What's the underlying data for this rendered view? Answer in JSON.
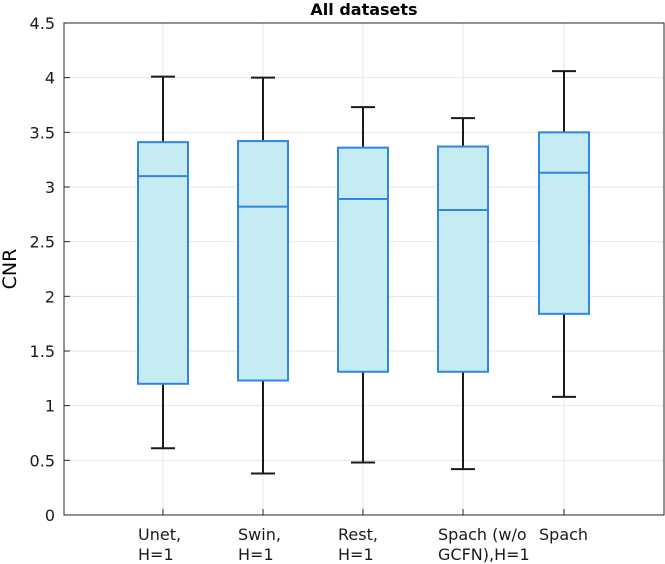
{
  "chart_data": {
    "type": "boxplot",
    "title": "All datasets",
    "xlabel": "",
    "ylabel": "CNR",
    "ylim": [
      0,
      4.5
    ],
    "yticks": [
      "0",
      "0.5",
      "1",
      "1.5",
      "2",
      "2.5",
      "3",
      "3.5",
      "4",
      "4.5"
    ],
    "grid": true,
    "categories": [
      {
        "lines": [
          "Unet,",
          "H=1"
        ]
      },
      {
        "lines": [
          "Swin,",
          "H=1"
        ]
      },
      {
        "lines": [
          "Rest,",
          "H=1"
        ]
      },
      {
        "lines": [
          "Spach  (w/o",
          "GCFN),H=1"
        ]
      },
      {
        "lines": [
          "Spach"
        ]
      }
    ],
    "boxes": [
      {
        "whisker_low": 0.61,
        "q1": 1.2,
        "median": 3.1,
        "q3": 3.41,
        "whisker_high": 4.01
      },
      {
        "whisker_low": 0.38,
        "q1": 1.23,
        "median": 2.82,
        "q3": 3.42,
        "whisker_high": 4.0
      },
      {
        "whisker_low": 0.48,
        "q1": 1.31,
        "median": 2.89,
        "q3": 3.36,
        "whisker_high": 3.73
      },
      {
        "whisker_low": 0.42,
        "q1": 1.31,
        "median": 2.79,
        "q3": 3.37,
        "whisker_high": 3.63
      },
      {
        "whisker_low": 1.08,
        "q1": 1.84,
        "median": 3.13,
        "q3": 3.5,
        "whisker_high": 4.06
      }
    ],
    "colors": {
      "box_fill": "#c4ecf2",
      "box_edge": "#2f86e0",
      "whisker": "#1a1a1a",
      "grid": "#e6e6e6",
      "axis": "#262626"
    }
  }
}
